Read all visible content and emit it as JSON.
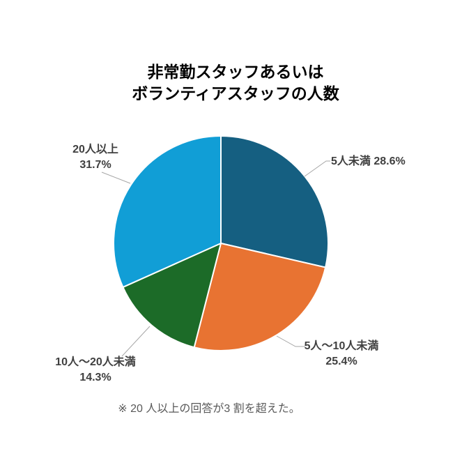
{
  "chart_data": {
    "type": "pie",
    "title": "非常勤スタッフあるいはボランティアスタッフの人数",
    "title_lines": [
      "非常勤スタッフあるいは",
      "ボランティアスタッフの人数"
    ],
    "categories": [
      "5人未満",
      "5人〜10人未満",
      "10人〜20人未満",
      "20人以上"
    ],
    "values": [
      28.6,
      25.4,
      14.3,
      31.7
    ],
    "unit": "%",
    "slice_ids": [
      "under-5",
      "5-to-10",
      "10-to-20",
      "over-20"
    ],
    "colors": [
      "#155F81",
      "#E87332",
      "#1C6B28",
      "#119ED6"
    ],
    "start_angle_deg": 0,
    "direction": "clockwise",
    "legend_position": "none",
    "background": "#FFFFFF",
    "label_color": "#404040",
    "leader_line_color": "#A6A6A6",
    "labels": [
      {
        "target": "under-5",
        "lines": [
          "5人未満 28.6%"
        ]
      },
      {
        "target": "5-to-10",
        "lines": [
          "5人〜10人未満",
          "25.4%"
        ]
      },
      {
        "target": "10-to-20",
        "lines": [
          "10人〜20人未満",
          "14.3%"
        ]
      },
      {
        "target": "over-20",
        "lines": [
          "20人以上",
          "31.7%"
        ]
      }
    ],
    "annotation": "※ 20 人以上の回答が3 割を超えた。"
  }
}
